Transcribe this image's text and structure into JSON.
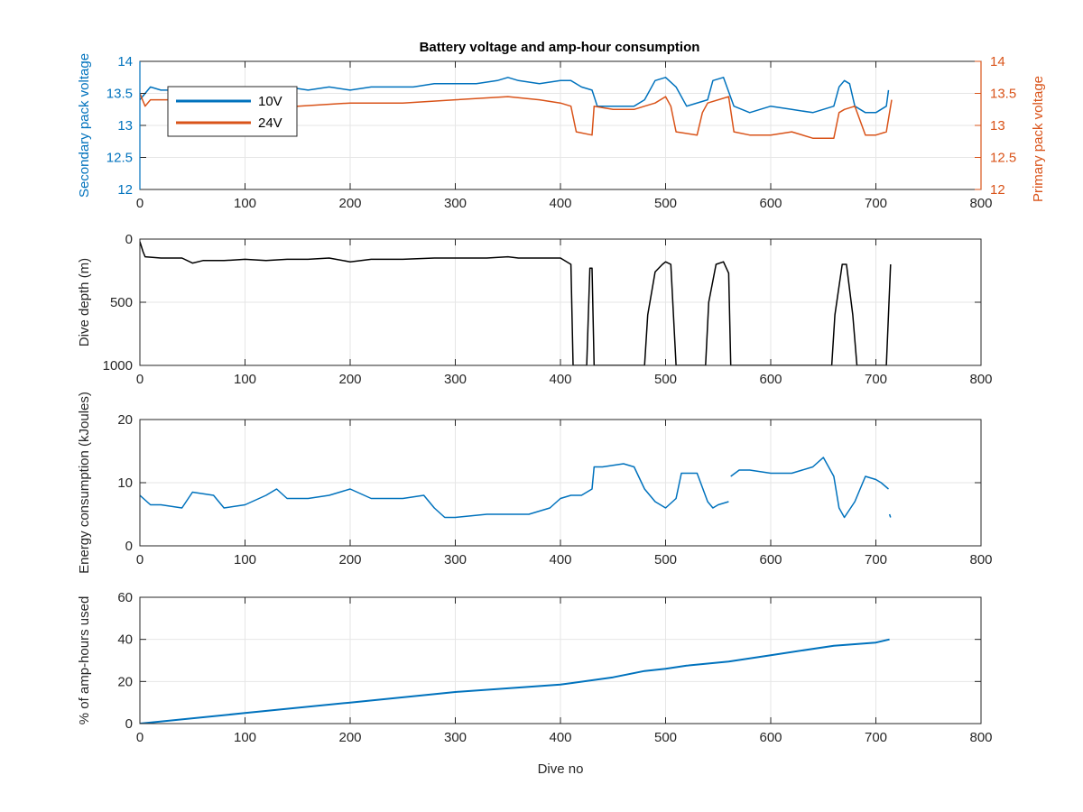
{
  "colors": {
    "blue": "#0072BD",
    "orange": "#D95319",
    "black": "#000000",
    "grid": "#e6e6e6",
    "axis": "#262626"
  },
  "chart_data": [
    {
      "type": "line",
      "title": "Battery voltage and amp-hour consumption",
      "ylabel_left": "Secondary pack voltage",
      "ylabel_right": "Primary pack voltage",
      "xlim": [
        0,
        800
      ],
      "ylim_left": [
        12,
        14
      ],
      "ylim_right": [
        12,
        14
      ],
      "xticks": [
        0,
        100,
        200,
        300,
        400,
        500,
        600,
        700,
        800
      ],
      "yticks_left": [
        12,
        12.5,
        13,
        13.5,
        14
      ],
      "yticks_right": [
        12,
        12.5,
        13,
        13.5,
        14
      ],
      "grid": true,
      "legend_position": "top-left",
      "series": [
        {
          "name": "10V",
          "color": "#0072BD",
          "axis": "left",
          "x": [
            0,
            10,
            20,
            40,
            60,
            80,
            100,
            120,
            140,
            160,
            180,
            200,
            220,
            240,
            260,
            280,
            300,
            320,
            340,
            350,
            360,
            380,
            400,
            410,
            420,
            430,
            435,
            450,
            470,
            480,
            490,
            500,
            510,
            520,
            540,
            545,
            555,
            565,
            580,
            600,
            620,
            640,
            660,
            665,
            670,
            675,
            680,
            690,
            700,
            710,
            712
          ],
          "y": [
            13.4,
            13.6,
            13.55,
            13.55,
            13.6,
            13.6,
            13.6,
            13.6,
            13.6,
            13.55,
            13.6,
            13.55,
            13.6,
            13.6,
            13.6,
            13.65,
            13.65,
            13.65,
            13.7,
            13.75,
            13.7,
            13.65,
            13.7,
            13.7,
            13.6,
            13.55,
            13.3,
            13.3,
            13.3,
            13.4,
            13.7,
            13.75,
            13.6,
            13.3,
            13.4,
            13.7,
            13.75,
            13.3,
            13.2,
            13.3,
            13.25,
            13.2,
            13.3,
            13.6,
            13.7,
            13.65,
            13.3,
            13.2,
            13.2,
            13.3,
            13.55
          ]
        },
        {
          "name": "24V",
          "color": "#D95319",
          "axis": "right",
          "x": [
            0,
            5,
            10,
            50,
            100,
            150,
            200,
            250,
            300,
            350,
            380,
            400,
            410,
            415,
            430,
            432,
            450,
            470,
            480,
            490,
            500,
            505,
            510,
            530,
            535,
            540,
            560,
            565,
            580,
            600,
            620,
            640,
            660,
            665,
            670,
            680,
            690,
            700,
            710,
            715
          ],
          "y": [
            13.5,
            13.3,
            13.4,
            13.4,
            13.35,
            13.3,
            13.35,
            13.35,
            13.4,
            13.45,
            13.4,
            13.35,
            13.3,
            12.9,
            12.85,
            13.3,
            13.25,
            13.25,
            13.3,
            13.35,
            13.45,
            13.3,
            12.9,
            12.85,
            13.2,
            13.35,
            13.45,
            12.9,
            12.85,
            12.85,
            12.9,
            12.8,
            12.8,
            13.2,
            13.25,
            13.3,
            12.85,
            12.85,
            12.9,
            13.4
          ]
        }
      ]
    },
    {
      "type": "line",
      "ylabel": "Dive depth (m)",
      "xlim": [
        0,
        800
      ],
      "ylim": [
        0,
        1000
      ],
      "y_reversed": true,
      "xticks": [
        0,
        100,
        200,
        300,
        400,
        500,
        600,
        700,
        800
      ],
      "yticks": [
        0,
        500,
        1000
      ],
      "grid": true,
      "series": [
        {
          "color": "#000000",
          "x": [
            0,
            3,
            5,
            20,
            40,
            50,
            60,
            80,
            100,
            120,
            140,
            160,
            180,
            200,
            220,
            250,
            280,
            300,
            330,
            350,
            360,
            380,
            400,
            410,
            412,
            418,
            425,
            428,
            430,
            432,
            436,
            480,
            483,
            490,
            497,
            500,
            505,
            510,
            538,
            541,
            548,
            555,
            560,
            562,
            565,
            600,
            640,
            658,
            661,
            668,
            672,
            678,
            682,
            710,
            714
          ],
          "y": [
            20,
            100,
            140,
            150,
            150,
            190,
            170,
            170,
            160,
            170,
            160,
            160,
            150,
            180,
            160,
            160,
            150,
            150,
            150,
            140,
            150,
            150,
            150,
            200,
            1000,
            1000,
            1000,
            230,
            230,
            1000,
            1000,
            1000,
            600,
            260,
            200,
            180,
            200,
            1000,
            1000,
            500,
            200,
            180,
            270,
            1000,
            1000,
            1000,
            1000,
            1000,
            600,
            200,
            200,
            600,
            1000,
            1000,
            200
          ]
        }
      ]
    },
    {
      "type": "line",
      "ylabel": "Energy consumption (kJoules)",
      "xlim": [
        0,
        800
      ],
      "ylim": [
        0,
        20
      ],
      "xticks": [
        0,
        100,
        200,
        300,
        400,
        500,
        600,
        700,
        800
      ],
      "yticks": [
        0,
        10,
        20
      ],
      "grid": true,
      "series": [
        {
          "color": "#0072BD",
          "x": [
            0,
            10,
            20,
            40,
            50,
            70,
            80,
            100,
            120,
            130,
            140,
            160,
            180,
            200,
            220,
            250,
            270,
            280,
            290,
            300,
            330,
            350,
            370,
            390,
            400,
            410,
            420,
            430,
            432,
            440,
            460,
            470,
            480,
            490,
            500,
            510,
            515,
            530,
            540,
            545,
            550,
            560
          ],
          "y": [
            8,
            6.5,
            6.5,
            6,
            8.5,
            8,
            6,
            6.5,
            8,
            9,
            7.5,
            7.5,
            8,
            9,
            7.5,
            7.5,
            8,
            6,
            4.5,
            4.5,
            5,
            5,
            5,
            6,
            7.5,
            8,
            8,
            9,
            12.5,
            12.5,
            13,
            12.5,
            9,
            7,
            6,
            7.5,
            11.5,
            11.5,
            7,
            6,
            6.5,
            7
          ]
        },
        {
          "color": "#0072BD",
          "x": [
            562,
            570,
            580,
            600,
            620,
            640,
            650,
            660,
            665,
            670,
            680,
            690,
            700,
            705,
            712
          ],
          "y": [
            11,
            12,
            12,
            11.5,
            11.5,
            12.5,
            14,
            11,
            6,
            4.5,
            7,
            11,
            10.5,
            10,
            9
          ]
        },
        {
          "color": "#0072BD",
          "x": [
            713,
            714
          ],
          "y": [
            5,
            4.5
          ]
        }
      ]
    },
    {
      "type": "line",
      "xlabel": "Dive no",
      "ylabel": "% of amp-hours used",
      "xlim": [
        0,
        800
      ],
      "ylim": [
        0,
        60
      ],
      "xticks": [
        0,
        100,
        200,
        300,
        400,
        500,
        600,
        700,
        800
      ],
      "yticks": [
        0,
        20,
        40,
        60
      ],
      "grid": true,
      "series": [
        {
          "color": "#0072BD",
          "x": [
            0,
            100,
            200,
            300,
            400,
            450,
            480,
            500,
            520,
            560,
            600,
            660,
            700,
            713
          ],
          "y": [
            0,
            5,
            10,
            15,
            18.5,
            22,
            25,
            26,
            27.5,
            29.5,
            32.5,
            37,
            38.5,
            40
          ]
        }
      ]
    }
  ]
}
